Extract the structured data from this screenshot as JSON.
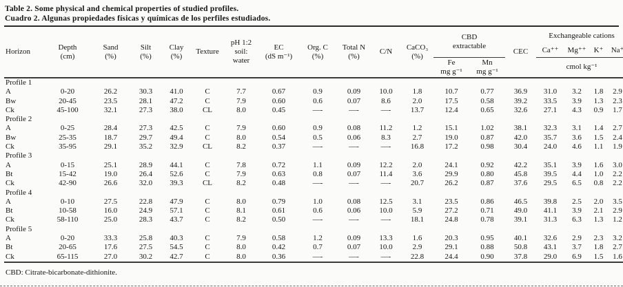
{
  "page": {
    "title_en": "Table 2. Some physical and chemical properties of studied profiles.",
    "title_es": "Cuadro 2. Algunas propiedades físicas y químicas de los perfiles estudiados.",
    "footnote": "CBD:  Citrate-bicarbonate-dithionite."
  },
  "table": {
    "headers": {
      "horizon": "Horizon",
      "depth": "Depth\n(cm)",
      "sand": "Sand\n(%)",
      "silt": "Silt\n(%)",
      "clay": "Clay\n(%)",
      "texture": "Texture",
      "ph": "pH 1:2\nsoil:\nwater",
      "ec": "EC\n(dS m⁻¹)",
      "org_c": "Org. C\n(%)",
      "total_n": "Total N\n(%)",
      "cn": "C/N",
      "caco3": "CaCO₃\n(%)",
      "cbd_group": "CBD\nextractable",
      "fe": "Fe\nmg g⁻¹",
      "mn": "Mn\nmg g⁻¹",
      "cec": "CEC",
      "exch_group": "Exchangeable cations",
      "ca": "Ca⁺⁺",
      "mg": "Mg⁺⁺",
      "k": "K⁺",
      "na": "Na⁺",
      "exch_unit": "cmol kg⁻¹"
    },
    "groups": [
      {
        "label": "Profile 1",
        "rows": [
          [
            "A",
            "0-20",
            "26.2",
            "30.3",
            "41.0",
            "C",
            "7.7",
            "0.67",
            "0.9",
            "0.09",
            "10.0",
            "1.8",
            "10.7",
            "0.77",
            "36.9",
            "31.0",
            "3.2",
            "1.8",
            "2.9"
          ],
          [
            "Bw",
            "20-45",
            "23.5",
            "28.1",
            "47.2",
            "C",
            "7.9",
            "0.60",
            "0.6",
            "0.07",
            "8.6",
            "2.0",
            "17.5",
            "0.58",
            "39.2",
            "33.5",
            "3.9",
            "1.3",
            "2.3"
          ],
          [
            "Ck",
            "45-100",
            "32.1",
            "27.3",
            "38.0",
            "CL",
            "8.0",
            "0.45",
            "—-",
            "—-",
            "—-",
            "13.7",
            "12.4",
            "0.65",
            "32.6",
            "27.1",
            "4.3",
            "0.9",
            "1.7"
          ]
        ]
      },
      {
        "label": "Profile 2",
        "rows": [
          [
            "A",
            "0-25",
            "28.4",
            "27.3",
            "42.5",
            "C",
            "7.9",
            "0.60",
            "0.9",
            "0.08",
            "11.2",
            "1.2",
            "15.1",
            "1.02",
            "38.1",
            "32.3",
            "3.1",
            "1.4",
            "2.7"
          ],
          [
            "Bw",
            "25-35",
            "18.7",
            "29.7",
            "49.4",
            "C",
            "8.0",
            "0.54",
            "0.5",
            "0.06",
            "8.3",
            "2.7",
            "19.0",
            "0.87",
            "42.0",
            "35.7",
            "3.6",
            "1.5",
            "2.4"
          ],
          [
            "Ck",
            "35-95",
            "29.1",
            "35.2",
            "32.9",
            "CL",
            "8.2",
            "0.37",
            "—-",
            "—-",
            "—-",
            "16.8",
            "17.2",
            "0.98",
            "30.4",
            "24.0",
            "4.6",
            "1.1",
            "1.9"
          ]
        ]
      },
      {
        "label": "Profile 3",
        "rows": [
          [
            "A",
            "0-15",
            "25.1",
            "28.9",
            "44.1",
            "C",
            "7.8",
            "0.72",
            "1.1",
            "0.09",
            "12.2",
            "2.0",
            "24.1",
            "0.92",
            "42.2",
            "35.1",
            "3.9",
            "1.6",
            "3.0"
          ],
          [
            "Bt",
            "15-42",
            "19.0",
            "26.4",
            "52.6",
            "C",
            "7.9",
            "0.63",
            "0.8",
            "0.07",
            "11.4",
            "3.6",
            "29.9",
            "0.80",
            "45.8",
            "39.5",
            "4.4",
            "1.0",
            "2.2"
          ],
          [
            "Ck",
            "42-90",
            "26.6",
            "32.0",
            "39.3",
            "CL",
            "8.2",
            "0.48",
            "—-",
            "—-",
            "—-",
            "20.7",
            "26.2",
            "0.87",
            "37.6",
            "29.5",
            "6.5",
            "0.8",
            "2.2"
          ]
        ]
      },
      {
        "label": "Profile 4",
        "rows": [
          [
            "A",
            "0-10",
            "27.5",
            "22.8",
            "47.9",
            "C",
            "8.0",
            "0.79",
            "1.0",
            "0.08",
            "12.5",
            "3.1",
            "23.5",
            "0.86",
            "46.5",
            "39.8",
            "2.5",
            "2.0",
            "3.5"
          ],
          [
            "Bt",
            "10-58",
            "16.0",
            "24.9",
            "57.1",
            "C",
            "8.1",
            "0.61",
            "0.6",
            "0.06",
            "10.0",
            "5.9",
            "27.2",
            "0.71",
            "49.0",
            "41.1",
            "3.9",
            "2.1",
            "2.9"
          ],
          [
            "Ck",
            "58-110",
            "25.0",
            "28.3",
            "43.7",
            "C",
            "8.2",
            "0.50",
            "—-",
            "—-",
            "—-",
            "18.1",
            "24.8",
            "0.78",
            "39.1",
            "31.3",
            "6.3",
            "1.3",
            "1.2"
          ]
        ]
      },
      {
        "label": "Profile 5",
        "rows": [
          [
            "A",
            "0-20",
            "33.3",
            "25.8",
            "40.3",
            "C",
            "7.9",
            "0.58",
            "1.2",
            "0.09",
            "13.3",
            "1.6",
            "20.3",
            "0.95",
            "40.1",
            "32.6",
            "2.9",
            "2.3",
            "3.2"
          ],
          [
            "Bt",
            "20-65",
            "17.6",
            "27.5",
            "54.5",
            "C",
            "8.0",
            "0.42",
            "0.7",
            "0.07",
            "10.0",
            "2.9",
            "29.1",
            "0.88",
            "50.8",
            "43.1",
            "3.7",
            "1.8",
            "2.7"
          ],
          [
            "Ck",
            "65-115",
            "27.0",
            "30.2",
            "42.7",
            "C",
            "8.0",
            "0.36",
            "—-",
            "—-",
            "—-",
            "22.8",
            "24.4",
            "0.90",
            "37.8",
            "29.0",
            "6.9",
            "1.5",
            "1.6"
          ]
        ]
      }
    ]
  }
}
